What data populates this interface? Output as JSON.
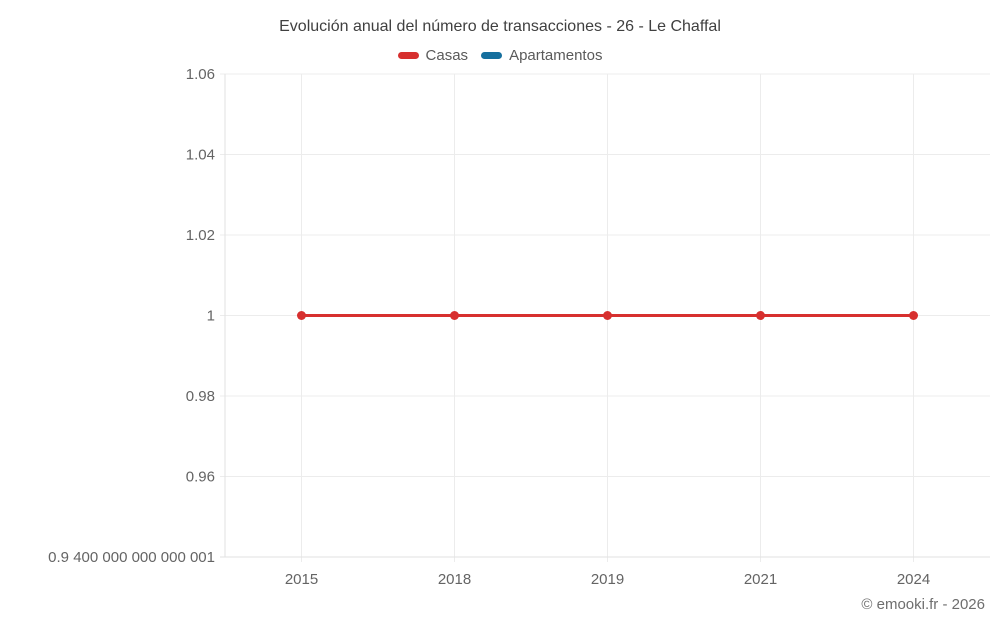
{
  "title": "Evolución anual del número de transacciones - 26 - Le Chaffal",
  "legend": {
    "items": [
      {
        "label": "Casas",
        "color": "#d7302f"
      },
      {
        "label": "Apartamentos",
        "color": "#156f9e"
      }
    ]
  },
  "footer": {
    "copyright": "© emooki.fr - 2026"
  },
  "colors": {
    "background": "#ffffff",
    "grid": "#ececec",
    "axis": "#e2e2e2",
    "tick_label": "#646464",
    "title_text": "#404040",
    "legend_text": "#5a5a5a",
    "footer_text": "#6e6e6e"
  },
  "chart_data": {
    "type": "line",
    "title": "Evolución anual del número de transacciones - 26 - Le Chaffal",
    "categories": [
      "2015",
      "2018",
      "2019",
      "2021",
      "2024"
    ],
    "series": [
      {
        "name": "Casas",
        "color": "#d7302f",
        "values": [
          1,
          1,
          1,
          1,
          1
        ]
      },
      {
        "name": "Apartamentos",
        "color": "#156f9e",
        "values": []
      }
    ],
    "ylim": [
      0.9400000000000001,
      1.06
    ],
    "yticks": [
      {
        "value": 1.06,
        "label": "1.06"
      },
      {
        "value": 1.04,
        "label": "1.04"
      },
      {
        "value": 1.02,
        "label": "1.02"
      },
      {
        "value": 1,
        "label": "1"
      },
      {
        "value": 0.98,
        "label": "0.98"
      },
      {
        "value": 0.96,
        "label": "0.96"
      },
      {
        "value": 0.9400000000000001,
        "label": "0.9 400 000 000 000 001"
      }
    ],
    "xlabel": "",
    "ylabel": "",
    "grid": true,
    "legend_position": "top"
  }
}
